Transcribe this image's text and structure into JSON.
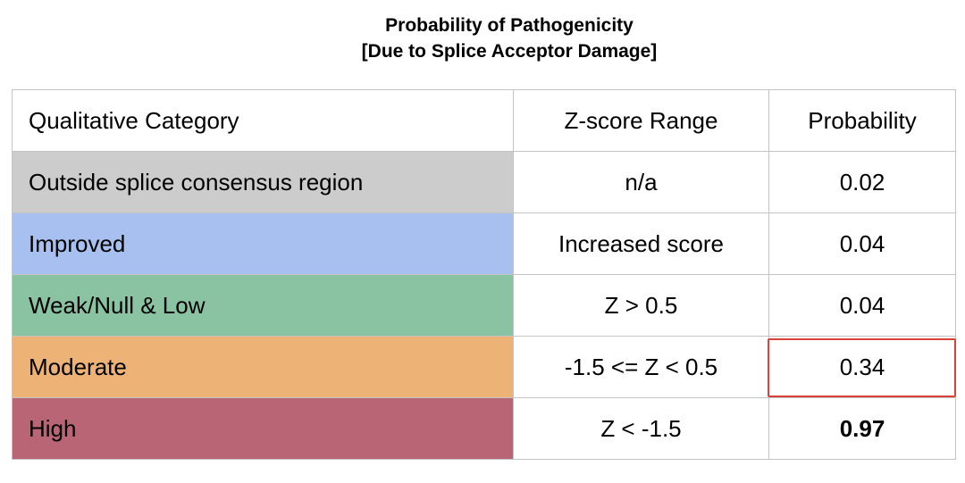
{
  "title": {
    "line1": "Probability of Pathogenicity",
    "line2": "[Due to Splice Acceptor Damage]"
  },
  "table": {
    "headers": [
      "Qualitative Category",
      "Z-score Range",
      "Probability"
    ],
    "rows": [
      {
        "category": "Outside splice consensus region",
        "z_range": "n/a",
        "probability": "0.02",
        "color": "#cccccc"
      },
      {
        "category": "Improved",
        "z_range": "Increased score",
        "probability": "0.04",
        "color": "#a8c0ef"
      },
      {
        "category": "Weak/Null & Low",
        "z_range": "Z > 0.5",
        "probability": "0.04",
        "color": "#8ac3a1"
      },
      {
        "category": "Moderate",
        "z_range": "-1.5 <= Z < 0.5",
        "probability": "0.34",
        "color": "#edb275"
      },
      {
        "category": "High",
        "z_range": "Z  < -1.5",
        "probability": "0.97",
        "color": "#b96575"
      }
    ],
    "highlight_color": "#d9423a"
  }
}
